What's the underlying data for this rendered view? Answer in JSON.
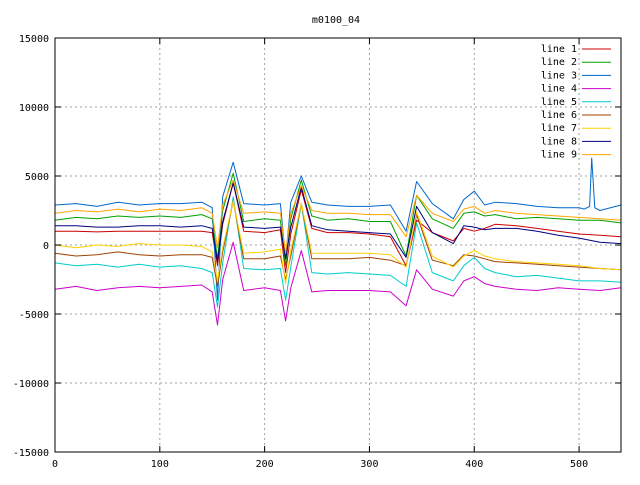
{
  "chart_data": {
    "type": "line",
    "title": "m0100_04",
    "xlabel": "",
    "ylabel": "",
    "xlim": [
      0,
      540
    ],
    "ylim": [
      -15000,
      15000
    ],
    "x_ticks": [
      0,
      100,
      200,
      300,
      400,
      500
    ],
    "y_ticks": [
      -15000,
      -10000,
      -5000,
      0,
      5000,
      10000,
      15000
    ],
    "grid": true,
    "legend_position": "top-right",
    "series": [
      {
        "name": "line 1",
        "color": "#cc0000",
        "x": [
          0,
          20,
          40,
          60,
          80,
          100,
          120,
          140,
          150,
          155,
          160,
          170,
          180,
          200,
          215,
          220,
          225,
          235,
          245,
          260,
          280,
          300,
          320,
          335,
          345,
          360,
          380,
          390,
          400,
          410,
          420,
          440,
          460,
          480,
          500,
          520,
          540
        ],
        "y": [
          1000,
          1000,
          950,
          1000,
          1000,
          1000,
          1000,
          1000,
          900,
          -1500,
          1500,
          4500,
          1000,
          900,
          1100,
          -2000,
          800,
          4000,
          1200,
          900,
          900,
          800,
          600,
          -1500,
          1800,
          900,
          300,
          1200,
          1000,
          1200,
          1500,
          1400,
          1200,
          1000,
          800,
          700,
          600
        ]
      },
      {
        "name": "line 2",
        "color": "#00a000",
        "x": [
          0,
          20,
          40,
          60,
          80,
          100,
          120,
          140,
          150,
          155,
          160,
          170,
          180,
          200,
          215,
          220,
          225,
          235,
          245,
          260,
          280,
          300,
          320,
          335,
          345,
          360,
          380,
          390,
          400,
          410,
          420,
          440,
          460,
          480,
          500,
          520,
          540
        ],
        "y": [
          1800,
          2000,
          1900,
          2100,
          2000,
          2100,
          2000,
          2200,
          1900,
          -1000,
          2500,
          5200,
          1700,
          1900,
          1800,
          -1500,
          1900,
          4700,
          2100,
          1800,
          1900,
          1700,
          1700,
          -800,
          3600,
          1900,
          1200,
          2300,
          2400,
          2100,
          2200,
          1900,
          2000,
          1900,
          1800,
          1800,
          1600
        ]
      },
      {
        "name": "line 3",
        "color": "#0066cc",
        "x": [
          0,
          20,
          40,
          60,
          80,
          100,
          120,
          140,
          150,
          155,
          160,
          170,
          180,
          200,
          215,
          220,
          225,
          235,
          245,
          260,
          280,
          300,
          320,
          335,
          345,
          360,
          380,
          390,
          400,
          410,
          420,
          440,
          460,
          480,
          500,
          505,
          510,
          512,
          515,
          520,
          540
        ],
        "y": [
          2900,
          3000,
          2800,
          3100,
          2900,
          3000,
          3000,
          3100,
          2700,
          -4000,
          3500,
          6000,
          3000,
          2900,
          3000,
          -1000,
          3100,
          5000,
          3100,
          2900,
          2800,
          2800,
          2900,
          1000,
          4600,
          3000,
          1900,
          3300,
          3900,
          2900,
          3100,
          3000,
          2800,
          2700,
          2700,
          2600,
          2800,
          6300,
          2700,
          2500,
          2900
        ]
      },
      {
        "name": "line 4",
        "color": "#cc00cc",
        "x": [
          0,
          20,
          40,
          60,
          80,
          100,
          120,
          140,
          150,
          155,
          160,
          170,
          180,
          200,
          215,
          220,
          225,
          235,
          245,
          260,
          280,
          300,
          320,
          335,
          345,
          360,
          380,
          390,
          400,
          410,
          420,
          440,
          460,
          480,
          500,
          520,
          540
        ],
        "y": [
          -3200,
          -3000,
          -3300,
          -3100,
          -3000,
          -3100,
          -3000,
          -2900,
          -3400,
          -5800,
          -2500,
          200,
          -3300,
          -3100,
          -3300,
          -5500,
          -3100,
          -400,
          -3400,
          -3300,
          -3300,
          -3300,
          -3400,
          -4400,
          -1800,
          -3200,
          -3700,
          -2600,
          -2300,
          -2800,
          -3000,
          -3200,
          -3300,
          -3100,
          -3200,
          -3300,
          -3100
        ]
      },
      {
        "name": "line 5",
        "color": "#00cccc",
        "x": [
          0,
          20,
          40,
          60,
          80,
          100,
          120,
          140,
          150,
          155,
          160,
          170,
          180,
          200,
          215,
          220,
          225,
          235,
          245,
          260,
          280,
          300,
          320,
          335,
          345,
          360,
          380,
          390,
          400,
          410,
          420,
          440,
          460,
          480,
          500,
          520,
          540
        ],
        "y": [
          -1300,
          -1500,
          -1400,
          -1600,
          -1400,
          -1600,
          -1500,
          -1700,
          -2000,
          -4500,
          -1300,
          3500,
          -1700,
          -1800,
          -1700,
          -4000,
          -1600,
          3000,
          -2000,
          -2100,
          -2000,
          -2100,
          -2200,
          -3000,
          1600,
          -2000,
          -2600,
          -1500,
          -900,
          -1700,
          -2000,
          -2300,
          -2200,
          -2400,
          -2600,
          -2600,
          -2700
        ]
      },
      {
        "name": "line 6",
        "color": "#a04000",
        "x": [
          0,
          20,
          40,
          60,
          80,
          100,
          120,
          140,
          150,
          155,
          160,
          170,
          180,
          200,
          215,
          220,
          225,
          235,
          245,
          260,
          280,
          300,
          320,
          335,
          345,
          360,
          380,
          390,
          400,
          410,
          420,
          440,
          460,
          480,
          500,
          520,
          540
        ],
        "y": [
          -600,
          -800,
          -700,
          -500,
          -700,
          -800,
          -700,
          -700,
          -900,
          -3000,
          -500,
          3200,
          -1000,
          -1000,
          -800,
          -2500,
          -800,
          3000,
          -1000,
          -1000,
          -1000,
          -900,
          -1100,
          -1500,
          2200,
          -1100,
          -1500,
          -700,
          -800,
          -1000,
          -1200,
          -1300,
          -1400,
          -1500,
          -1600,
          -1700,
          -1800
        ]
      },
      {
        "name": "line 7",
        "color": "#ffd000",
        "x": [
          0,
          20,
          40,
          60,
          80,
          100,
          120,
          140,
          150,
          155,
          160,
          170,
          180,
          200,
          215,
          220,
          225,
          235,
          245,
          260,
          280,
          300,
          320,
          335,
          345,
          360,
          380,
          390,
          400,
          410,
          420,
          440,
          460,
          480,
          500,
          520,
          540
        ],
        "y": [
          0,
          -200,
          0,
          -100,
          100,
          0,
          0,
          -100,
          -500,
          -2600,
          -200,
          3200,
          -600,
          -500,
          -300,
          -2800,
          -400,
          3000,
          -600,
          -600,
          -600,
          -600,
          -700,
          -1600,
          2400,
          -800,
          -1600,
          -800,
          -400,
          -800,
          -1000,
          -1200,
          -1300,
          -1400,
          -1500,
          -1700,
          -1800
        ]
      },
      {
        "name": "line 8",
        "color": "#000080",
        "x": [
          0,
          20,
          40,
          60,
          80,
          100,
          120,
          140,
          150,
          155,
          160,
          170,
          180,
          200,
          215,
          220,
          225,
          235,
          245,
          260,
          280,
          300,
          320,
          335,
          345,
          360,
          380,
          390,
          400,
          410,
          420,
          440,
          460,
          480,
          500,
          520,
          540
        ],
        "y": [
          1400,
          1400,
          1300,
          1300,
          1400,
          1400,
          1300,
          1400,
          1200,
          -1200,
          1700,
          4500,
          1300,
          1200,
          1300,
          -1000,
          1300,
          4200,
          1400,
          1100,
          1000,
          900,
          800,
          -900,
          2800,
          900,
          100,
          1400,
          1300,
          1100,
          1200,
          1200,
          1000,
          700,
          500,
          200,
          100
        ]
      },
      {
        "name": "line 9",
        "color": "#ffa500",
        "x": [
          0,
          20,
          40,
          60,
          80,
          100,
          120,
          140,
          150,
          155,
          160,
          170,
          180,
          200,
          215,
          220,
          225,
          235,
          245,
          260,
          280,
          300,
          320,
          335,
          345,
          360,
          380,
          390,
          400,
          410,
          420,
          440,
          460,
          480,
          500,
          520,
          540
        ],
        "y": [
          2300,
          2500,
          2400,
          2600,
          2400,
          2600,
          2500,
          2700,
          2300,
          -200,
          2900,
          4700,
          2300,
          2400,
          2300,
          -600,
          2300,
          4300,
          2500,
          2300,
          2300,
          2200,
          2200,
          600,
          3600,
          2300,
          1700,
          2600,
          2800,
          2300,
          2500,
          2300,
          2200,
          2100,
          2000,
          1900,
          1800
        ]
      }
    ]
  }
}
